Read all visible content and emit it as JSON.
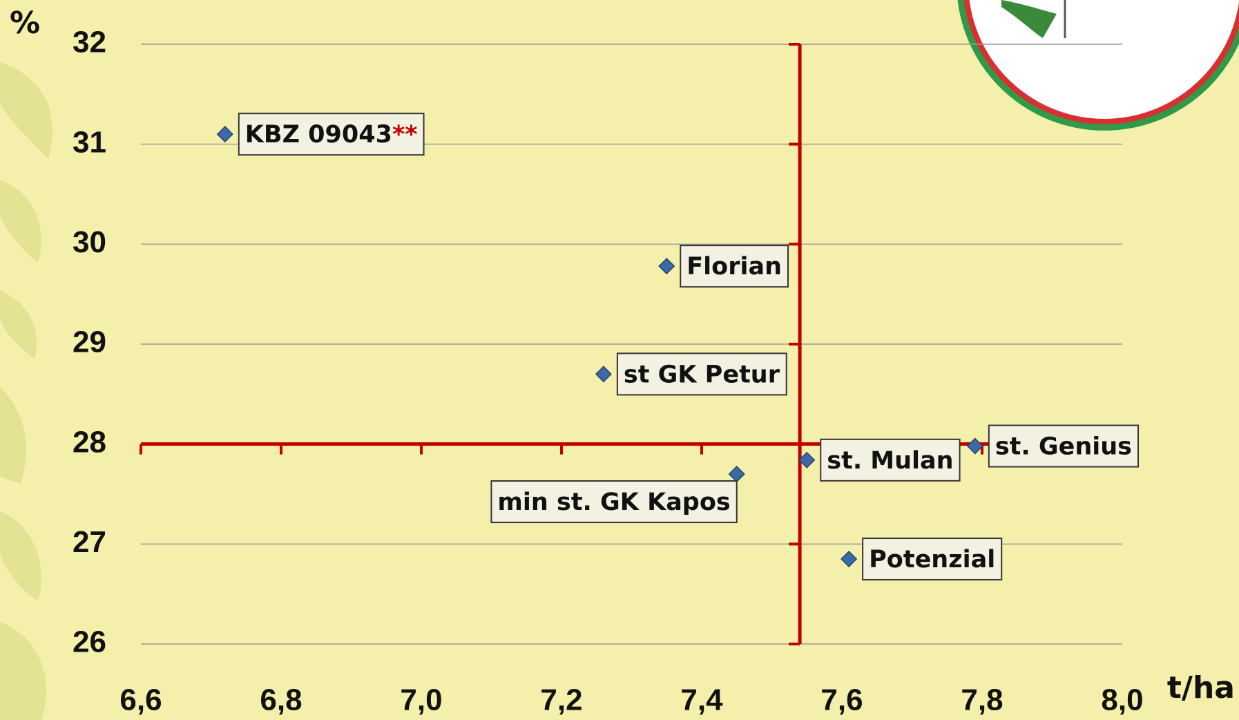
{
  "chart_data": {
    "type": "scatter",
    "x_label": "t/ha",
    "y_label": "%",
    "x": [
      6.72,
      7.35,
      7.26,
      7.45,
      7.55,
      7.79,
      7.61
    ],
    "values": [
      31.1,
      29.78,
      28.7,
      27.7,
      27.84,
      27.98,
      26.85
    ],
    "labels": [
      "KBZ 09043",
      "Florian",
      "st GK Petur",
      "min st. GK Kapos",
      "st. Mulan",
      "st. Genius",
      "Potenzial"
    ],
    "label_notes": [
      "**",
      null,
      null,
      null,
      null,
      null,
      null
    ],
    "label_positions": [
      "right",
      "right",
      "right",
      "below-left",
      "right",
      "right",
      "right"
    ],
    "color": "#3d6aa6",
    "note_color": "#c00000",
    "reference_lines": {
      "x": 7.54,
      "y": 28,
      "color": "#c00000"
    },
    "xlim": [
      6.6,
      8.0
    ],
    "ylim": [
      26,
      32
    ],
    "xticks": [
      {
        "value": 6.6,
        "label": "6,6"
      },
      {
        "value": 6.8,
        "label": "6,8"
      },
      {
        "value": 7.0,
        "label": "7,0"
      },
      {
        "value": 7.2,
        "label": "7,2"
      },
      {
        "value": 7.4,
        "label": "7,4"
      },
      {
        "value": 7.6,
        "label": "7,6"
      },
      {
        "value": 7.8,
        "label": "7,8"
      },
      {
        "value": 8.0,
        "label": "8,0"
      }
    ],
    "yticks": [
      26,
      27,
      28,
      29,
      30,
      31,
      32
    ],
    "grid": true
  }
}
